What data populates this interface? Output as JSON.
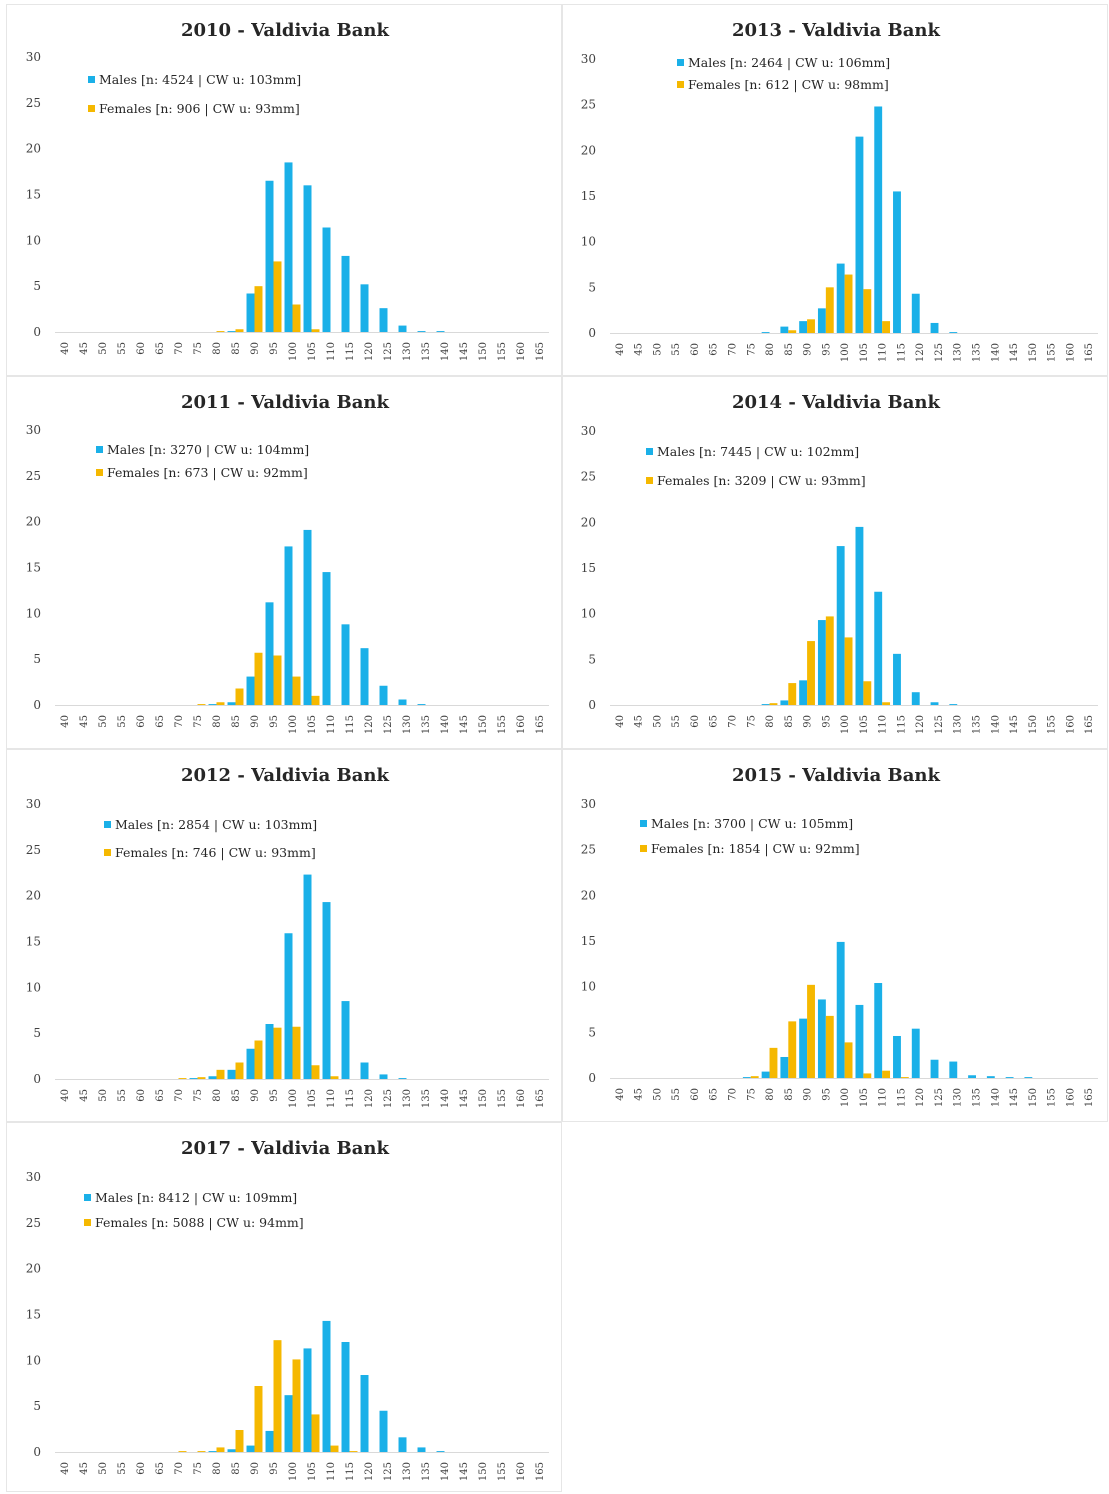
{
  "colors": {
    "males": "#1ab0e8",
    "females": "#f5b800",
    "axis": "#d9d9d9"
  },
  "chart_data": [
    {
      "type": "bar",
      "title": "2010 - Valdivia Bank",
      "categories": [
        "40",
        "45",
        "50",
        "55",
        "60",
        "65",
        "70",
        "75",
        "80",
        "85",
        "90",
        "95",
        "100",
        "105",
        "110",
        "115",
        "120",
        "125",
        "130",
        "135",
        "140",
        "145",
        "150",
        "155",
        "160",
        "165"
      ],
      "ylim": [
        0,
        30
      ],
      "yticks": [
        0,
        5,
        10,
        15,
        20,
        25,
        30
      ],
      "legend_position": "top-left",
      "series": [
        {
          "name": "Males [n: 4524  |  CW u: 103mm]",
          "values": [
            0,
            0,
            0,
            0,
            0,
            0,
            0,
            0,
            0,
            0.1,
            4.2,
            16.5,
            18.5,
            16.0,
            11.4,
            8.3,
            5.2,
            2.6,
            0.7,
            0.1,
            0.1,
            0,
            0,
            0,
            0,
            0
          ]
        },
        {
          "name": "Females [n: 906   |  CW u: 93mm]",
          "values": [
            0,
            0,
            0,
            0,
            0,
            0,
            0,
            0,
            0.1,
            0.3,
            5.0,
            7.7,
            3.0,
            0.3,
            0,
            0,
            0,
            0,
            0,
            0,
            0,
            0,
            0,
            0,
            0,
            0
          ]
        }
      ]
    },
    {
      "type": "bar",
      "title": "2013 - Valdivia Bank",
      "categories": [
        "40",
        "45",
        "50",
        "55",
        "60",
        "65",
        "70",
        "75",
        "80",
        "85",
        "90",
        "95",
        "100",
        "105",
        "110",
        "115",
        "120",
        "125",
        "130",
        "135",
        "140",
        "145",
        "150",
        "155",
        "160",
        "165"
      ],
      "ylim": [
        0,
        30
      ],
      "yticks": [
        0,
        5,
        10,
        15,
        20,
        25,
        30
      ],
      "legend_position": "top-center",
      "series": [
        {
          "name": "Males [n: 2464  |  CW u: 106mm]",
          "values": [
            0,
            0,
            0,
            0,
            0,
            0,
            0,
            0,
            0.1,
            0.7,
            1.3,
            2.7,
            7.6,
            21.5,
            24.8,
            15.5,
            4.3,
            1.1,
            0.1,
            0,
            0,
            0,
            0,
            0,
            0,
            0
          ]
        },
        {
          "name": "Females [n: 612   |  CW u: 98mm]",
          "values": [
            0,
            0,
            0,
            0,
            0,
            0,
            0,
            0,
            0,
            0.3,
            1.5,
            5.0,
            6.4,
            4.8,
            1.3,
            0,
            0,
            0,
            0,
            0,
            0,
            0,
            0,
            0,
            0,
            0
          ]
        }
      ]
    },
    {
      "type": "bar",
      "title": "2011 - Valdivia Bank",
      "categories": [
        "40",
        "45",
        "50",
        "55",
        "60",
        "65",
        "70",
        "75",
        "80",
        "85",
        "90",
        "95",
        "100",
        "105",
        "110",
        "115",
        "120",
        "125",
        "130",
        "135",
        "140",
        "145",
        "150",
        "155",
        "160",
        "165"
      ],
      "ylim": [
        0,
        30
      ],
      "yticks": [
        0,
        5,
        10,
        15,
        20,
        25,
        30
      ],
      "legend_position": "top-left",
      "series": [
        {
          "name": "Males [n: 3270   |  CW u: 104mm]",
          "values": [
            0,
            0,
            0,
            0,
            0,
            0,
            0,
            0,
            0.1,
            0.3,
            3.1,
            11.2,
            17.3,
            19.1,
            14.5,
            8.8,
            6.2,
            2.1,
            0.6,
            0.1,
            0,
            0,
            0,
            0,
            0,
            0
          ]
        },
        {
          "name": "Females [n: 673   |  CW u: 92mm]",
          "values": [
            0,
            0,
            0,
            0,
            0,
            0,
            0,
            0.1,
            0.3,
            1.8,
            5.7,
            5.4,
            3.1,
            1.0,
            0,
            0,
            0,
            0,
            0,
            0,
            0,
            0,
            0,
            0,
            0,
            0
          ]
        }
      ]
    },
    {
      "type": "bar",
      "title": "2014 - Valdivia Bank",
      "categories": [
        "40",
        "45",
        "50",
        "55",
        "60",
        "65",
        "70",
        "75",
        "80",
        "85",
        "90",
        "95",
        "100",
        "105",
        "110",
        "115",
        "120",
        "125",
        "130",
        "135",
        "140",
        "145",
        "150",
        "155",
        "160",
        "165"
      ],
      "ylim": [
        0,
        30
      ],
      "yticks": [
        0,
        5,
        10,
        15,
        20,
        25,
        30
      ],
      "legend_position": "top-left",
      "series": [
        {
          "name": "Males [n: 7445   |  CW u: 102mm]",
          "values": [
            0,
            0,
            0,
            0,
            0,
            0,
            0,
            0,
            0.1,
            0.5,
            2.7,
            9.3,
            17.4,
            19.5,
            12.4,
            5.6,
            1.4,
            0.3,
            0.1,
            0,
            0,
            0,
            0,
            0,
            0,
            0
          ]
        },
        {
          "name": "Females [n: 3209   |  CW u: 93mm]",
          "values": [
            0,
            0,
            0,
            0,
            0,
            0,
            0,
            0,
            0.2,
            2.4,
            7.0,
            9.7,
            7.4,
            2.6,
            0.3,
            0,
            0,
            0,
            0,
            0,
            0,
            0,
            0,
            0,
            0,
            0
          ]
        }
      ]
    },
    {
      "type": "bar",
      "title": "2012 - Valdivia Bank",
      "categories": [
        "40",
        "45",
        "50",
        "55",
        "60",
        "65",
        "70",
        "75",
        "80",
        "85",
        "90",
        "95",
        "100",
        "105",
        "110",
        "115",
        "120",
        "125",
        "130",
        "135",
        "140",
        "145",
        "150",
        "155",
        "160",
        "165"
      ],
      "ylim": [
        0,
        30
      ],
      "yticks": [
        0,
        5,
        10,
        15,
        20,
        25,
        30
      ],
      "legend_position": "top-left",
      "series": [
        {
          "name": "Males [n: 2854   |  CW u: 103mm]",
          "values": [
            0,
            0,
            0,
            0,
            0,
            0,
            0,
            0.1,
            0.3,
            1.0,
            3.3,
            6.0,
            15.9,
            22.3,
            19.3,
            8.5,
            1.8,
            0.5,
            0.1,
            0,
            0,
            0,
            0,
            0,
            0,
            0
          ]
        },
        {
          "name": "Females [n: 746   |  CW u: 93mm]",
          "values": [
            0,
            0,
            0,
            0,
            0,
            0,
            0.1,
            0.2,
            1.0,
            1.8,
            4.2,
            5.6,
            5.7,
            1.5,
            0.3,
            0,
            0,
            0,
            0,
            0,
            0,
            0,
            0,
            0,
            0,
            0
          ]
        }
      ]
    },
    {
      "type": "bar",
      "title": "2015 - Valdivia Bank",
      "categories": [
        "40",
        "45",
        "50",
        "55",
        "60",
        "65",
        "70",
        "75",
        "80",
        "85",
        "90",
        "95",
        "100",
        "105",
        "110",
        "115",
        "120",
        "125",
        "130",
        "135",
        "140",
        "145",
        "150",
        "155",
        "160",
        "165"
      ],
      "ylim": [
        0,
        30
      ],
      "yticks": [
        0,
        5,
        10,
        15,
        20,
        25,
        30
      ],
      "legend_position": "top-left",
      "series": [
        {
          "name": "Males [n: 3700   |  CW u: 105mm]",
          "values": [
            0,
            0,
            0,
            0,
            0,
            0,
            0,
            0.1,
            0.7,
            2.3,
            6.5,
            8.6,
            14.9,
            8.0,
            10.4,
            4.6,
            5.4,
            2.0,
            1.8,
            0.3,
            0.2,
            0.1,
            0.1,
            0,
            0,
            0
          ]
        },
        {
          "name": "Females [n: 1854   |  CW u: 92mm]",
          "values": [
            0,
            0,
            0,
            0,
            0,
            0,
            0,
            0.2,
            3.3,
            6.2,
            10.2,
            6.8,
            3.9,
            0.5,
            0.8,
            0.1,
            0,
            0,
            0,
            0,
            0,
            0,
            0,
            0,
            0,
            0
          ]
        }
      ]
    },
    {
      "type": "bar",
      "title": "2017 - Valdivia Bank",
      "categories": [
        "40",
        "45",
        "50",
        "55",
        "60",
        "65",
        "70",
        "75",
        "80",
        "85",
        "90",
        "95",
        "100",
        "105",
        "110",
        "115",
        "120",
        "125",
        "130",
        "135",
        "140",
        "145",
        "150",
        "155",
        "160",
        "165"
      ],
      "ylim": [
        0,
        30
      ],
      "yticks": [
        0,
        5,
        10,
        15,
        20,
        25,
        30
      ],
      "legend_position": "top-left",
      "series": [
        {
          "name": "Males [n: 8412   |  CW u: 109mm]",
          "values": [
            0,
            0,
            0,
            0,
            0,
            0,
            0,
            0,
            0.1,
            0.3,
            0.7,
            2.3,
            6.2,
            11.3,
            14.3,
            12.0,
            8.4,
            4.5,
            1.6,
            0.5,
            0.1,
            0,
            0,
            0,
            0,
            0
          ]
        },
        {
          "name": "Females [n: 5088   |  CW u: 94mm]",
          "values": [
            0,
            0,
            0,
            0,
            0,
            0,
            0.1,
            0.1,
            0.5,
            2.4,
            7.2,
            12.2,
            10.1,
            4.1,
            0.7,
            0.1,
            0,
            0,
            0,
            0,
            0,
            0,
            0,
            0,
            0,
            0
          ]
        }
      ]
    }
  ]
}
